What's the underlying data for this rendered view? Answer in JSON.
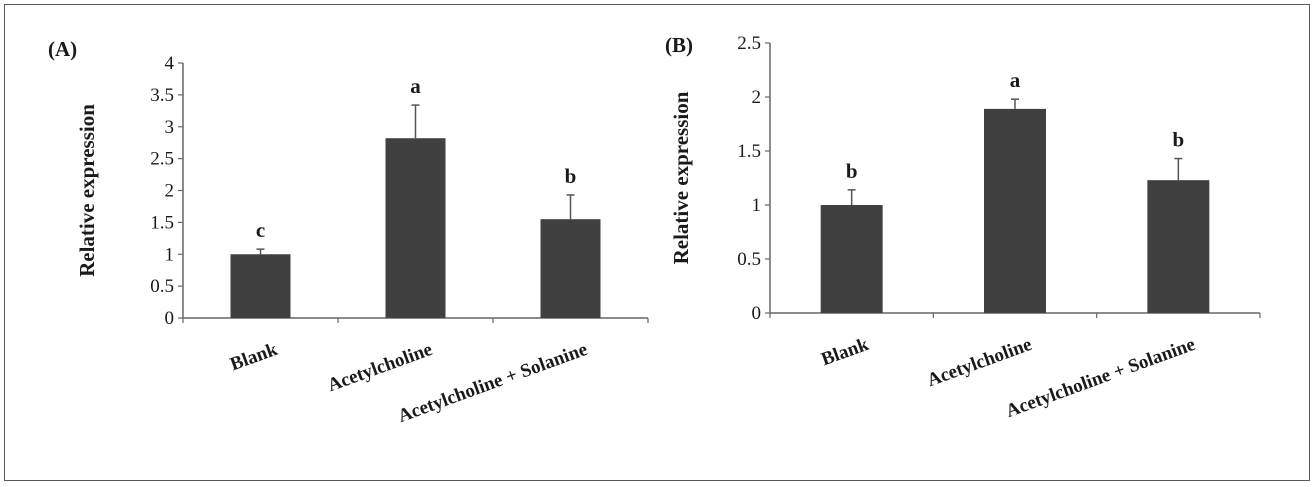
{
  "chart_data": [
    {
      "type": "bar",
      "panel_label": "(A)",
      "ylabel": "Relative expression",
      "categories": [
        "Blank",
        "Acetylcholine",
        "Acetylcholine + Solanine"
      ],
      "values": [
        1.0,
        2.82,
        1.55
      ],
      "errors": [
        0.08,
        0.52,
        0.38
      ],
      "significance": [
        "c",
        "a",
        "b"
      ],
      "ylim": [
        0,
        4
      ],
      "yticks": [
        "0",
        "0.5",
        "1",
        "1.5",
        "2",
        "2.5",
        "3",
        "3.5",
        "4"
      ],
      "bar_color": "#404040",
      "grid": false
    },
    {
      "type": "bar",
      "panel_label": "(B)",
      "ylabel": "Relative expression",
      "categories": [
        "Blank",
        "Acetylcholine",
        "Acetylcholine + Solanine"
      ],
      "values": [
        1.0,
        1.89,
        1.23
      ],
      "errors": [
        0.14,
        0.09,
        0.2
      ],
      "significance": [
        "b",
        "a",
        "b"
      ],
      "ylim": [
        0,
        2.5
      ],
      "yticks": [
        "0",
        "0.5",
        "1",
        "1.5",
        "2",
        "2.5"
      ],
      "bar_color": "#404040",
      "grid": false
    }
  ]
}
